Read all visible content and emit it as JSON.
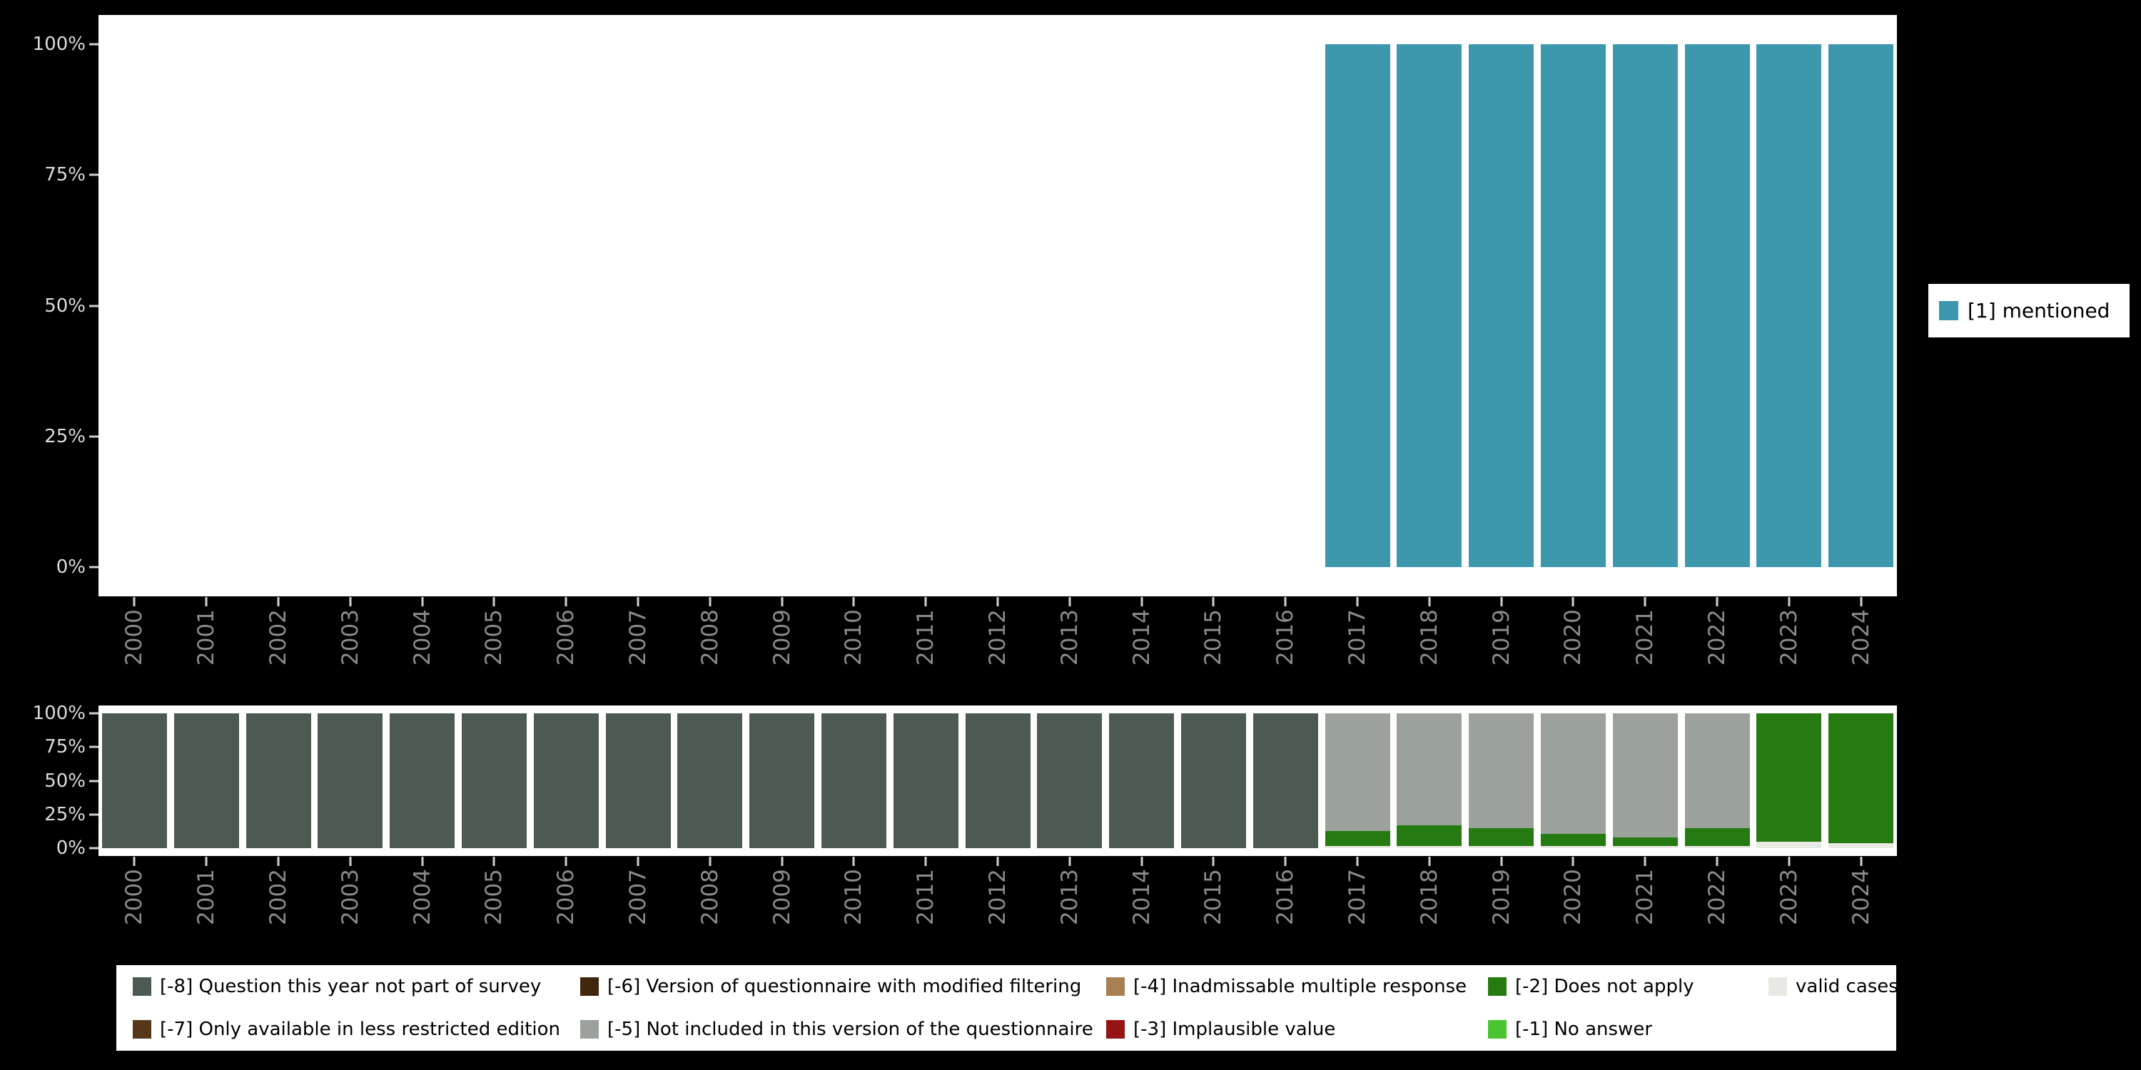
{
  "page": {
    "background": "#000000"
  },
  "colors": {
    "mentioned": "#3d98ae",
    "m8": "#4d5a52",
    "m7": "#57371a",
    "m6": "#40260c",
    "m5": "#9aa29b",
    "m4": "#a87f52",
    "m3": "#941414",
    "m2": "#267a12",
    "m1": "#4bc432",
    "valid": "#e9e9e3"
  },
  "legend": {
    "rows": [
      [
        {
          "key": "m8",
          "label": "[-8] Question this year not part of survey"
        },
        {
          "key": "m6",
          "label": "[-6] Version of questionnaire with modified filtering"
        },
        {
          "key": "m4",
          "label": "[-4] Inadmissable multiple response"
        },
        {
          "key": "m2",
          "label": "[-2] Does not apply"
        },
        {
          "key": "valid",
          "label": "valid cases"
        }
      ],
      [
        {
          "key": "m7",
          "label": "[-7] Only available in less restricted edition"
        },
        {
          "key": "m5",
          "label": "[-5] Not included in this version of the questionnaire"
        },
        {
          "key": "m3",
          "label": "[-3] Implausible value"
        },
        {
          "key": "m1",
          "label": "[-1] No answer"
        }
      ]
    ]
  },
  "chart_data": [
    {
      "id": "mentioned",
      "type": "bar",
      "title": "",
      "xlabel": "",
      "ylabel": "",
      "ylim": [
        0,
        100
      ],
      "grid": false,
      "legend_position": "right",
      "categories": [
        "2000",
        "2001",
        "2002",
        "2003",
        "2004",
        "2005",
        "2006",
        "2007",
        "2008",
        "2009",
        "2010",
        "2011",
        "2012",
        "2013",
        "2014",
        "2015",
        "2016",
        "2017",
        "2018",
        "2019",
        "2020",
        "2021",
        "2022",
        "2023",
        "2024"
      ],
      "yticks": [
        100,
        75,
        50,
        25,
        0
      ],
      "ytick_labels": [
        "100%",
        "75%",
        "50%",
        "25%",
        "0%"
      ],
      "series": [
        {
          "name": "[1] mentioned",
          "key": "mentioned",
          "color": "#3d98ae",
          "values": [
            null,
            null,
            null,
            null,
            null,
            null,
            null,
            null,
            null,
            null,
            null,
            null,
            null,
            null,
            null,
            null,
            null,
            100,
            100,
            100,
            100,
            100,
            100,
            100,
            100
          ]
        }
      ]
    },
    {
      "id": "missing-values-breakdown",
      "type": "stacked-bar",
      "title": "",
      "xlabel": "",
      "ylabel": "",
      "ylim": [
        0,
        100
      ],
      "grid": false,
      "legend_position": "bottom",
      "categories": [
        "2000",
        "2001",
        "2002",
        "2003",
        "2004",
        "2005",
        "2006",
        "2007",
        "2008",
        "2009",
        "2010",
        "2011",
        "2012",
        "2013",
        "2014",
        "2015",
        "2016",
        "2017",
        "2018",
        "2019",
        "2020",
        "2021",
        "2022",
        "2023",
        "2024"
      ],
      "yticks": [
        100,
        75,
        50,
        25,
        0
      ],
      "ytick_labels": [
        "100%",
        "75%",
        "50%",
        "25%",
        "0%"
      ],
      "stacks": [
        [
          {
            "key": "m8",
            "pct": 100
          }
        ],
        [
          {
            "key": "m8",
            "pct": 100
          }
        ],
        [
          {
            "key": "m8",
            "pct": 100
          }
        ],
        [
          {
            "key": "m8",
            "pct": 100
          }
        ],
        [
          {
            "key": "m8",
            "pct": 100
          }
        ],
        [
          {
            "key": "m8",
            "pct": 100
          }
        ],
        [
          {
            "key": "m8",
            "pct": 100
          }
        ],
        [
          {
            "key": "m8",
            "pct": 100
          }
        ],
        [
          {
            "key": "m8",
            "pct": 100
          }
        ],
        [
          {
            "key": "m8",
            "pct": 100
          }
        ],
        [
          {
            "key": "m8",
            "pct": 100
          }
        ],
        [
          {
            "key": "m8",
            "pct": 100
          }
        ],
        [
          {
            "key": "m8",
            "pct": 100
          }
        ],
        [
          {
            "key": "m8",
            "pct": 100
          }
        ],
        [
          {
            "key": "m8",
            "pct": 100
          }
        ],
        [
          {
            "key": "m8",
            "pct": 100
          }
        ],
        [
          {
            "key": "m8",
            "pct": 100
          }
        ],
        [
          {
            "key": "m5",
            "pct": 87
          },
          {
            "key": "m2",
            "pct": 11
          },
          {
            "key": "valid",
            "pct": 2
          }
        ],
        [
          {
            "key": "m5",
            "pct": 83
          },
          {
            "key": "m2",
            "pct": 15
          },
          {
            "key": "valid",
            "pct": 2
          }
        ],
        [
          {
            "key": "m5",
            "pct": 85
          },
          {
            "key": "m2",
            "pct": 13
          },
          {
            "key": "valid",
            "pct": 2
          }
        ],
        [
          {
            "key": "m5",
            "pct": 89
          },
          {
            "key": "m2",
            "pct": 9
          },
          {
            "key": "valid",
            "pct": 2
          }
        ],
        [
          {
            "key": "m5",
            "pct": 92
          },
          {
            "key": "m2",
            "pct": 6
          },
          {
            "key": "valid",
            "pct": 2
          }
        ],
        [
          {
            "key": "m5",
            "pct": 85
          },
          {
            "key": "m2",
            "pct": 13
          },
          {
            "key": "valid",
            "pct": 2
          }
        ],
        [
          {
            "key": "m2",
            "pct": 95
          },
          {
            "key": "valid",
            "pct": 5
          }
        ],
        [
          {
            "key": "m2",
            "pct": 96
          },
          {
            "key": "valid",
            "pct": 4
          }
        ]
      ]
    }
  ]
}
